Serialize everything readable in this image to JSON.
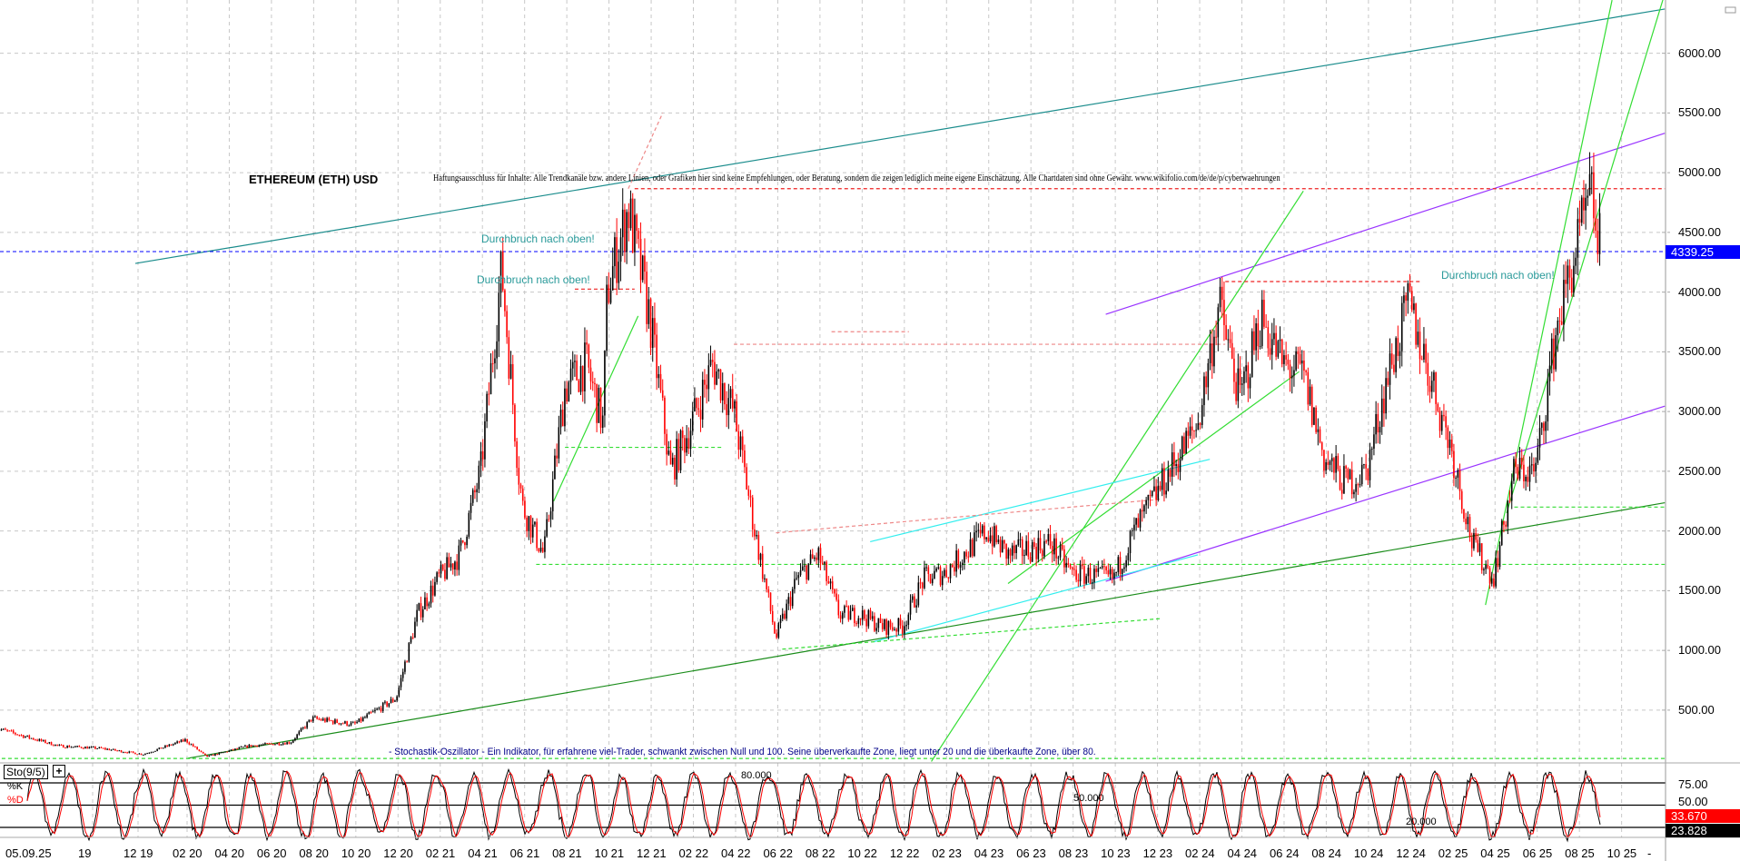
{
  "chart_data": {
    "type": "line",
    "title": "ETHEREUM (ETH) USD",
    "disclaimer": "Haftungsausschluss für Inhalte: Alle Trendkanäle bzw. andere Linien, oder Grafiken hier sind keine Empfehlungen, oder Beratung, sondern die zeigen lediglich meine eigene Einschätzung. Alle Chartdaten sind ohne Gewähr.  www.wikifolio.com/de/de/p/cyberwaehrungen",
    "annotations": [
      "Durchbruch nach oben!",
      "Durchbruch nach oben!",
      "Durchbruch nach oben!"
    ],
    "stochastic_caption": "- Stochastik-Oszillator - Ein Indikator, für erfahrene viel-Trader, schwankt zwischen Null und 100. Seine überverkaufte Zone, liegt unter 20 und die überkaufte Zone, über 80.",
    "ylim": [
      0,
      6400
    ],
    "y_ticks": [
      "6000.00",
      "5500.00",
      "5000.00",
      "4500.00",
      "4000.00",
      "3500.00",
      "3000.00",
      "2500.00",
      "2000.00",
      "1500.00",
      "1000.00",
      "500.00"
    ],
    "y_tick_values": [
      6000,
      5500,
      5000,
      4500,
      4000,
      3500,
      3000,
      2500,
      2000,
      1500,
      1000,
      500
    ],
    "x_ticks": [
      "05.09.25",
      "19",
      "12 19",
      "02 20",
      "04 20",
      "06 20",
      "08 20",
      "10 20",
      "12 20",
      "02 21",
      "04 21",
      "06 21",
      "08 21",
      "10 21",
      "12 21",
      "02 22",
      "04 22",
      "06 22",
      "08 22",
      "10 22",
      "12 22",
      "02 23",
      "04 23",
      "06 23",
      "08 23",
      "10 23",
      "12 23",
      "02 24",
      "04 24",
      "06 24",
      "08 24",
      "10 24",
      "12 24",
      "02 25",
      "04 25",
      "06 25",
      "08 25",
      "10 25",
      "-"
    ],
    "grid": true,
    "last_price": "4339.25",
    "last_price_value": 4339.25,
    "series": [
      {
        "x": [
          "2019-05",
          "2019-06",
          "2019-08",
          "2019-10",
          "2019-12",
          "2020-02",
          "2020-03",
          "2020-05",
          "2020-07",
          "2020-08",
          "2020-10",
          "2020-12",
          "2021-01",
          "2021-02",
          "2021-03",
          "2021-04",
          "2021-05",
          "2021-05-25",
          "2021-06",
          "2021-07",
          "2021-08",
          "2021-09",
          "2021-09-25",
          "2021-10",
          "2021-11",
          "2021-12",
          "2022-01",
          "2022-02",
          "2022-03",
          "2022-04",
          "2022-05",
          "2022-06",
          "2022-07",
          "2022-08",
          "2022-09",
          "2022-10",
          "2022-11",
          "2022-12",
          "2023-01",
          "2023-02",
          "2023-04",
          "2023-05",
          "2023-07",
          "2023-08",
          "2023-10",
          "2023-11",
          "2023-12",
          "2024-02",
          "2024-03",
          "2024-04",
          "2024-05",
          "2024-06",
          "2024-07",
          "2024-08",
          "2024-09",
          "2024-10",
          "2024-11",
          "2024-12",
          "2025-01",
          "2025-02",
          "2025-03",
          "2025-04",
          "2025-05",
          "2025-06",
          "2025-07",
          "2025-08",
          "2025-08-20",
          "2025-09-05"
        ],
        "values": [
          350,
          300,
          200,
          180,
          130,
          250,
          110,
          200,
          230,
          430,
          380,
          600,
          1300,
          1600,
          1800,
          2500,
          4200,
          2500,
          2200,
          1800,
          3200,
          3400,
          2900,
          4000,
          4700,
          3800,
          2500,
          2900,
          3400,
          3000,
          2000,
          1100,
          1600,
          1800,
          1300,
          1300,
          1200,
          1200,
          1600,
          1650,
          2000,
          1800,
          1900,
          1650,
          1600,
          2000,
          2300,
          2900,
          3900,
          3100,
          3800,
          3400,
          3300,
          2600,
          2400,
          2500,
          3300,
          3900,
          3300,
          2700,
          1900,
          1600,
          2500,
          2500,
          3700,
          4400,
          4800,
          4339
        ]
      }
    ],
    "trend_lines": [
      {
        "color": "#1a8c8c",
        "style": "solid",
        "from": [
          "2019-11-20",
          4240
        ],
        "to": [
          "2025-12-05",
          6370
        ]
      },
      {
        "color": "#9933ff",
        "style": "solid",
        "from": [
          "2023-09-20",
          3814
        ],
        "to": [
          "2025-12-05",
          5330
        ]
      },
      {
        "color": "#9933ff",
        "style": "solid",
        "from": [
          "2023-09-20",
          1578
        ],
        "to": [
          "2025-12-05",
          3045
        ]
      },
      {
        "color": "#1a8c1a",
        "style": "solid",
        "from": [
          "2020-02-05",
          97
        ],
        "to": [
          "2025-12-05",
          2236
        ]
      },
      {
        "color": "#33dd33",
        "style": "solid",
        "from": [
          "2023-01-12",
          70
        ],
        "to": [
          "2024-07-01",
          4846
        ]
      },
      {
        "color": "#33dd33",
        "style": "solid",
        "from": [
          "2023-05-01",
          1560
        ],
        "to": [
          "2024-06-25",
          3334
        ]
      },
      {
        "color": "#33dd33",
        "style": "solid",
        "from": [
          "2025-03-20",
          1380
        ],
        "to": [
          "2025-09-20",
          6445
        ]
      },
      {
        "color": "#33dd33",
        "style": "solid",
        "from": [
          "2025-04-20",
          2150
        ],
        "to": [
          "2025-12-05",
          6500
        ]
      },
      {
        "color": "#33dd33",
        "style": "solid",
        "from": [
          "2021-07-15",
          2250
        ],
        "to": [
          "2021-11-15",
          3800
        ]
      },
      {
        "color": "#33eeee",
        "style": "solid",
        "from": [
          "2022-10-15",
          1910
        ],
        "to": [
          "2024-02-18",
          2600
        ]
      },
      {
        "color": "#33eeee",
        "style": "solid",
        "from": [
          "2022-10-20",
          1072
        ],
        "to": [
          "2024-02-01",
          1800
        ]
      },
      {
        "color": "#33dd33",
        "style": "dashed",
        "from": [
          "2021-06-20",
          1720
        ],
        "to": [
          "2025-12-05",
          1720
        ]
      },
      {
        "color": "#33dd33",
        "style": "dashed",
        "from": [
          "2021-08-01",
          2700
        ],
        "to": [
          "2022-03-15",
          2700
        ]
      },
      {
        "color": "#33dd33",
        "style": "dashed",
        "from": [
          "2025-05-01",
          2200
        ],
        "to": [
          "2025-12-05",
          2200
        ]
      },
      {
        "color": "#33dd33",
        "style": "dashed",
        "from": [
          "2022-06-10",
          1010
        ],
        "to": [
          "2023-12-10",
          1267
        ]
      },
      {
        "color": "#33dd33",
        "style": "dashed",
        "from": [
          "2019-05-01",
          95
        ],
        "to": [
          "2025-12-05",
          95
        ]
      },
      {
        "color": "#ee2222",
        "style": "dashed",
        "from": [
          "2021-11-10",
          4866
        ],
        "to": [
          "2025-12-05",
          4866
        ]
      },
      {
        "color": "#ee2222",
        "style": "dashed",
        "from": [
          "2021-08-15",
          4025
        ],
        "to": [
          "2021-11-10",
          4025
        ]
      },
      {
        "color": "#ee2222",
        "style": "dashed",
        "from": [
          "2024-03-10",
          4088
        ],
        "to": [
          "2024-12-20",
          4088
        ]
      },
      {
        "color": "#ee8888",
        "style": "dashed",
        "from": [
          "2022-04-01",
          3563
        ],
        "to": [
          "2024-03-10",
          3563
        ]
      },
      {
        "color": "#ee8888",
        "style": "dashed",
        "from": [
          "2022-08-20",
          3668
        ],
        "to": [
          "2022-12-10",
          3668
        ]
      },
      {
        "color": "#ee8888",
        "style": "dashed",
        "from": [
          "2022-06-01",
          1984
        ],
        "to": [
          "2023-12-10",
          2266
        ]
      },
      {
        "color": "#ee8888",
        "style": "dashed",
        "from": [
          "2021-11-01",
          4866
        ],
        "to": [
          "2021-12-20",
          5500
        ]
      }
    ],
    "price_line_color": "#0000ff",
    "up_color": "#000000",
    "down_color": "#ff0000",
    "stochastic": {
      "label": "Sto(9/5)",
      "add_symbol": "+",
      "k_label": "%K",
      "d_label": "%D",
      "level_labels": [
        "80.000",
        "50.000",
        "20.000"
      ],
      "levels": [
        80,
        50,
        20
      ],
      "axis_ticks": [
        "75.00",
        "50.00"
      ],
      "k_value": "33.670",
      "d_value": "23.828",
      "k_color": "#000000",
      "d_color": "#ff0000"
    },
    "panel_button_icon": "minimize-icon"
  }
}
